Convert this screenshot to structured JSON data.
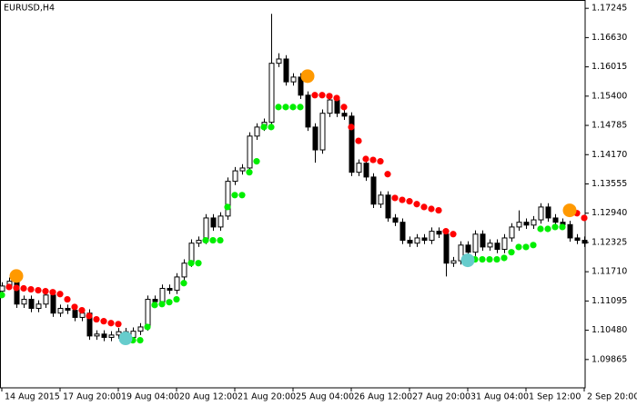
{
  "chart_data": {
    "type": "candlestick",
    "title": "EURUSD,H4",
    "up_color": "#ffffff",
    "down_color": "#000000",
    "open": [
      1.113,
      1.1141,
      1.1151,
      1.1103,
      1.1113,
      1.1094,
      1.1103,
      1.1122,
      1.1084,
      1.1094,
      1.109,
      1.1075,
      1.1084,
      1.1036,
      1.104,
      1.1033,
      1.1038,
      1.1045,
      1.1033,
      1.1046,
      1.1055,
      1.1113,
      1.1108,
      1.1136,
      1.1132,
      1.116,
      1.1189,
      1.1231,
      1.1237,
      1.1284,
      1.1265,
      1.1288,
      1.1361,
      1.1383,
      1.1389,
      1.1456,
      1.1475,
      1.1485,
      1.1609,
      1.1618,
      1.157,
      1.158,
      1.1542,
      1.1475,
      1.1427,
      1.1504,
      1.1532,
      1.1504,
      1.1498,
      1.138,
      1.1399,
      1.137,
      1.1313,
      1.1332,
      1.1284,
      1.1275,
      1.1237,
      1.1231,
      1.1242,
      1.1237,
      1.1256,
      1.125,
      1.1189,
      1.1194,
      1.1227,
      1.1212,
      1.125,
      1.1223,
      1.1231,
      1.1218,
      1.1242,
      1.1265,
      1.1275,
      1.1269,
      1.128,
      1.1307,
      1.1284,
      1.1275,
      1.127,
      1.1242,
      1.1237
    ],
    "high": [
      1.1149,
      1.1159,
      1.1159,
      1.1121,
      1.1121,
      1.1111,
      1.113,
      1.113,
      1.1102,
      1.1102,
      1.1098,
      1.1092,
      1.1092,
      1.1048,
      1.1048,
      1.1046,
      1.1053,
      1.1053,
      1.1054,
      1.1063,
      1.1121,
      1.1121,
      1.1144,
      1.1144,
      1.1168,
      1.1197,
      1.1239,
      1.1245,
      1.1292,
      1.1292,
      1.1296,
      1.1369,
      1.1391,
      1.1397,
      1.1464,
      1.1483,
      1.1493,
      1.1713,
      1.163,
      1.1626,
      1.1588,
      1.1588,
      1.155,
      1.1483,
      1.1512,
      1.154,
      1.154,
      1.1512,
      1.1506,
      1.1407,
      1.1407,
      1.1378,
      1.134,
      1.134,
      1.1292,
      1.1283,
      1.1245,
      1.125,
      1.125,
      1.1264,
      1.1264,
      1.1258,
      1.1202,
      1.1235,
      1.1235,
      1.1258,
      1.1258,
      1.1239,
      1.1239,
      1.125,
      1.1273,
      1.13,
      1.1283,
      1.1288,
      1.1315,
      1.1315,
      1.1292,
      1.1283,
      1.1278,
      1.125,
      1.1245
    ],
    "low": [
      1.1122,
      1.1133,
      1.1095,
      1.1095,
      1.1086,
      1.1086,
      1.1095,
      1.1076,
      1.1076,
      1.1082,
      1.1067,
      1.1067,
      1.1028,
      1.1028,
      1.1025,
      1.1025,
      1.103,
      1.1025,
      1.1025,
      1.1038,
      1.1047,
      1.11,
      1.11,
      1.1124,
      1.1124,
      1.1152,
      1.1181,
      1.1223,
      1.1229,
      1.1257,
      1.1257,
      1.128,
      1.1353,
      1.1375,
      1.1381,
      1.1448,
      1.1467,
      1.1477,
      1.1601,
      1.1562,
      1.1562,
      1.1534,
      1.1467,
      1.14,
      1.1419,
      1.1496,
      1.1496,
      1.149,
      1.1372,
      1.1372,
      1.1362,
      1.1305,
      1.1305,
      1.1276,
      1.1267,
      1.1229,
      1.1223,
      1.1223,
      1.1229,
      1.1229,
      1.1242,
      1.1161,
      1.1181,
      1.1186,
      1.1181,
      1.1204,
      1.1215,
      1.1215,
      1.121,
      1.121,
      1.1234,
      1.1257,
      1.1261,
      1.1261,
      1.1272,
      1.1276,
      1.1267,
      1.1262,
      1.1234,
      1.1229,
      1.1223
    ],
    "close": [
      1.1141,
      1.1151,
      1.1103,
      1.1113,
      1.1094,
      1.1103,
      1.1122,
      1.1084,
      1.1094,
      1.109,
      1.1075,
      1.1084,
      1.1036,
      1.104,
      1.1033,
      1.1038,
      1.1045,
      1.1033,
      1.1046,
      1.1055,
      1.1113,
      1.1108,
      1.1136,
      1.1132,
      1.116,
      1.1189,
      1.1231,
      1.1237,
      1.1284,
      1.1265,
      1.1288,
      1.1361,
      1.1383,
      1.1389,
      1.1456,
      1.1475,
      1.1485,
      1.1609,
      1.1618,
      1.157,
      1.158,
      1.1542,
      1.1475,
      1.1427,
      1.1504,
      1.1532,
      1.1504,
      1.1498,
      1.138,
      1.1399,
      1.137,
      1.1313,
      1.1332,
      1.1284,
      1.1275,
      1.1237,
      1.1231,
      1.1242,
      1.1237,
      1.1256,
      1.125,
      1.1189,
      1.1194,
      1.1227,
      1.1212,
      1.125,
      1.1223,
      1.1231,
      1.1218,
      1.1242,
      1.1265,
      1.1275,
      1.1269,
      1.128,
      1.1307,
      1.1284,
      1.1275,
      1.127,
      1.1242,
      1.1237,
      1.1231
    ],
    "series": [
      {
        "color": "#00ee00",
        "values": [
          1.1122,
          null,
          null,
          null,
          null,
          null,
          null,
          null,
          null,
          null,
          null,
          null,
          null,
          null,
          null,
          null,
          null,
          null,
          1.1027,
          1.1027,
          1.1055,
          1.1101,
          1.1103,
          1.1107,
          1.1113,
          1.1147,
          1.1189,
          1.1189,
          1.1237,
          1.1237,
          1.1237,
          1.1307,
          1.1332,
          1.1332,
          1.138,
          1.1403,
          1.1475,
          1.1475,
          1.1517,
          1.1517,
          1.1517,
          1.1517,
          null,
          null,
          null,
          null,
          null,
          null,
          null,
          null,
          null,
          null,
          null,
          null,
          null,
          null,
          null,
          null,
          null,
          null,
          null,
          null,
          null,
          null,
          null,
          1.1197,
          1.1197,
          1.1197,
          1.1197,
          1.12,
          1.1212,
          1.1223,
          1.1223,
          1.1227,
          1.1261,
          1.1261,
          1.1265,
          1.1265,
          null,
          null,
          null
        ]
      },
      {
        "color": "#ff0000",
        "values": [
          null,
          1.1139,
          1.1137,
          1.1136,
          1.1134,
          1.1132,
          1.113,
          1.1128,
          1.1124,
          1.1113,
          1.1097,
          1.109,
          1.1078,
          1.1071,
          1.1067,
          1.1063,
          1.1061,
          null,
          null,
          null,
          null,
          null,
          null,
          null,
          null,
          null,
          null,
          null,
          null,
          null,
          null,
          null,
          null,
          null,
          null,
          null,
          null,
          null,
          null,
          null,
          null,
          null,
          null,
          1.1542,
          1.1542,
          1.154,
          1.1536,
          1.1517,
          1.1475,
          1.1446,
          1.1408,
          1.1406,
          1.1403,
          1.1376,
          1.1326,
          1.1322,
          1.1319,
          1.1313,
          1.1307,
          1.1303,
          1.13,
          1.1256,
          1.125,
          null,
          null,
          null,
          null,
          null,
          null,
          null,
          null,
          null,
          null,
          null,
          null,
          null,
          null,
          null,
          null,
          1.1294,
          1.1284
        ]
      },
      {
        "color": "#ff9900",
        "values": [
          null,
          null,
          1.1162,
          null,
          null,
          null,
          null,
          null,
          null,
          null,
          null,
          null,
          null,
          null,
          null,
          null,
          null,
          null,
          null,
          null,
          null,
          null,
          null,
          null,
          null,
          null,
          null,
          null,
          null,
          null,
          null,
          null,
          null,
          null,
          null,
          null,
          null,
          null,
          null,
          null,
          null,
          null,
          1.1582,
          null,
          null,
          null,
          null,
          null,
          null,
          null,
          null,
          null,
          null,
          null,
          null,
          null,
          null,
          null,
          null,
          null,
          null,
          null,
          null,
          null,
          null,
          null,
          null,
          null,
          null,
          null,
          null,
          null,
          null,
          null,
          null,
          null,
          null,
          null,
          1.13,
          null,
          null
        ]
      },
      {
        "color": "#66cccc",
        "values": [
          null,
          null,
          null,
          null,
          null,
          null,
          null,
          null,
          null,
          null,
          null,
          null,
          null,
          null,
          null,
          null,
          null,
          1.1031,
          null,
          null,
          null,
          null,
          null,
          null,
          null,
          null,
          null,
          null,
          null,
          null,
          null,
          null,
          null,
          null,
          null,
          null,
          null,
          null,
          null,
          null,
          null,
          null,
          null,
          null,
          null,
          null,
          null,
          null,
          null,
          null,
          null,
          null,
          null,
          null,
          null,
          null,
          null,
          null,
          null,
          null,
          null,
          null,
          null,
          null,
          1.1195,
          null,
          null,
          null,
          null,
          null,
          null,
          null,
          null,
          null,
          null,
          null,
          null,
          null,
          null,
          null,
          null
        ]
      }
    ],
    "ylim": [
      1.0927,
      1.1742
    ],
    "yticks": [
      1.17245,
      {
        "value": 1.1663,
        "label": "1.16630"
      },
      1.16015,
      {
        "value": 1.154,
        "label": "1.15400"
      },
      1.14785,
      {
        "value": 1.1417,
        "label": "1.14170"
      },
      1.13555,
      {
        "value": 1.1294,
        "label": "1.12940"
      },
      1.12325,
      {
        "value": 1.1171,
        "label": "1.11710"
      },
      1.11095,
      {
        "value": 1.1048,
        "label": "1.10480"
      },
      1.09865
    ],
    "xlim": [
      0,
      80
    ],
    "xticks": [
      {
        "value": 0,
        "label": "14 Aug 2015"
      },
      {
        "value": 8,
        "label": "17 Aug 20:00"
      },
      {
        "value": 16,
        "label": "19 Aug 04:00"
      },
      {
        "value": 24,
        "label": "20 Aug 12:00"
      },
      {
        "value": 32,
        "label": "21 Aug 20:00"
      },
      {
        "value": 40,
        "label": "25 Aug 04:00"
      },
      {
        "value": 48,
        "label": "26 Aug 12:00"
      },
      {
        "value": 56,
        "label": "27 Aug 20:00"
      },
      {
        "value": 64,
        "label": "31 Aug 04:00"
      },
      {
        "value": 72,
        "label": "1 Sep 12:00"
      },
      {
        "value": 80,
        "label": "2 Sep 20:00"
      }
    ]
  }
}
